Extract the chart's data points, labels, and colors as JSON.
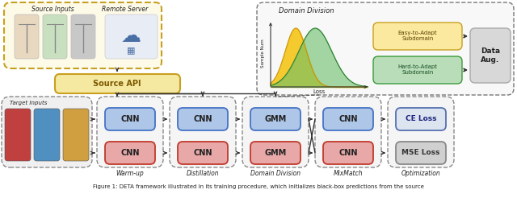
{
  "bg_color": "#ffffff",
  "source_box_color": "#c8a020",
  "source_box_fill": "#fefae8",
  "blue_box_fill": "#aec6e8",
  "blue_box_edge": "#4472c4",
  "red_box_fill": "#e8a8a8",
  "red_box_edge": "#c0392b",
  "gray_box_fill": "#d4d4d4",
  "gray_box_edge": "#999999",
  "yellow_gauss": "#f5c518",
  "green_gauss": "#6abf69",
  "stage_labels": [
    "Warm-up",
    "Distillation",
    "Domain Division",
    "MixMatch",
    "Optimization"
  ],
  "source_api_label": "Source API",
  "source_inputs_label": "Source Inputs",
  "remote_server_label": "Remote Server",
  "target_inputs_label": "Target Inputs",
  "domain_division_title": "Domain Division",
  "easy_adapt_label": "Easy-to-Adapt\nSubdomain",
  "hard_adapt_label": "Hard-to-Adapt\nSubdomain",
  "data_aug_label": "Data\nAug.",
  "sample_num_label": "Sample Num",
  "loss_label": "Loss",
  "ce_loss_label": "CE Loss",
  "mse_loss_label": "MSE Loss",
  "caption": "Figure 1: DETA framework illustrated in its training procedure, which initializes black-box predictions from the source"
}
